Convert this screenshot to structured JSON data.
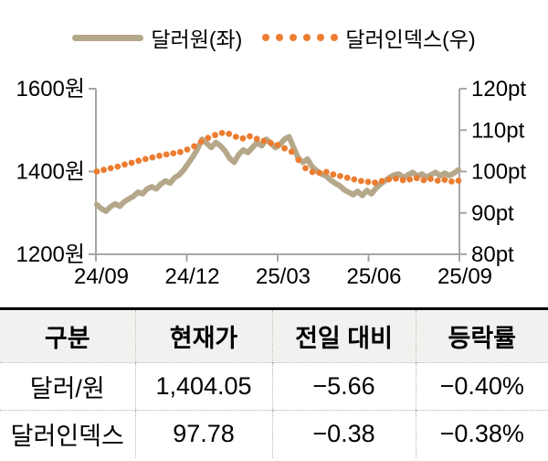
{
  "colors": {
    "won_line": "#b5a78a",
    "index_dots": "#ed7d31",
    "axis": "#a6a6a6",
    "table_header_bg": "#f1f1ef",
    "table_border_top": "#000000",
    "table_dotted_border": "#b5b2a8"
  },
  "chart_data": {
    "type": "line",
    "title": "",
    "legend_position": "top",
    "grid": false,
    "x_axis": {
      "tick_labels": [
        "24/09",
        "24/12",
        "25/03",
        "25/06",
        "25/09"
      ]
    },
    "y_axis_left": {
      "unit": "원",
      "min": 1200,
      "max": 1600,
      "tick_labels": [
        "1600원",
        "1400원",
        "1200원"
      ]
    },
    "y_axis_right": {
      "unit": "pt",
      "min": 80,
      "max": 120,
      "tick_labels": [
        "120pt",
        "110pt",
        "100pt",
        "90pt",
        "80pt"
      ]
    },
    "series": [
      {
        "name": "달러원",
        "legend_label": "달러원(좌)",
        "axis": "left",
        "style": "line",
        "color": "#b5a78a",
        "values": [
          1320,
          1310,
          1304,
          1315,
          1322,
          1316,
          1327,
          1334,
          1340,
          1350,
          1346,
          1358,
          1363,
          1358,
          1370,
          1377,
          1372,
          1385,
          1392,
          1404,
          1420,
          1436,
          1455,
          1478,
          1468,
          1458,
          1470,
          1462,
          1450,
          1432,
          1422,
          1441,
          1452,
          1446,
          1458,
          1470,
          1462,
          1478,
          1468,
          1458,
          1465,
          1478,
          1484,
          1458,
          1432,
          1422,
          1430,
          1412,
          1402,
          1394,
          1390,
          1380,
          1372,
          1366,
          1356,
          1350,
          1344,
          1352,
          1342,
          1354,
          1346,
          1360,
          1370,
          1378,
          1386,
          1392,
          1394,
          1385,
          1392,
          1398,
          1388,
          1394,
          1386,
          1392,
          1398,
          1390,
          1396,
          1390,
          1396,
          1404
        ]
      },
      {
        "name": "달러인덱스",
        "legend_label": "달러인덱스(우)",
        "axis": "right",
        "style": "dots",
        "color": "#ed7d31",
        "values": [
          100.0,
          100.4,
          100.8,
          101.2,
          101.7,
          102.1,
          102.6,
          103.0,
          103.4,
          103.8,
          104.1,
          104.4,
          104.7,
          105.3,
          106.1,
          107.2,
          108.1,
          108.8,
          109.3,
          109.1,
          108.4,
          108.0,
          108.5,
          107.9,
          107.4,
          106.9,
          106.4,
          105.6,
          104.8,
          102.8,
          100.8,
          99.9,
          99.7,
          99.9,
          99.3,
          98.9,
          98.5,
          98.1,
          97.7,
          97.5,
          97.3,
          97.7,
          98.1,
          98.3,
          97.9,
          98.1,
          98.4,
          97.9,
          98.2,
          97.8,
          98.0,
          97.6,
          97.8
        ]
      }
    ]
  },
  "table": {
    "headers": [
      "구분",
      "현재가",
      "전일 대비",
      "등락률"
    ],
    "rows": [
      [
        "달러/원",
        "1,404.05",
        "−5.66",
        "−0.40%"
      ],
      [
        "달러인덱스",
        "97.78",
        "−0.38",
        "−0.38%"
      ]
    ]
  }
}
